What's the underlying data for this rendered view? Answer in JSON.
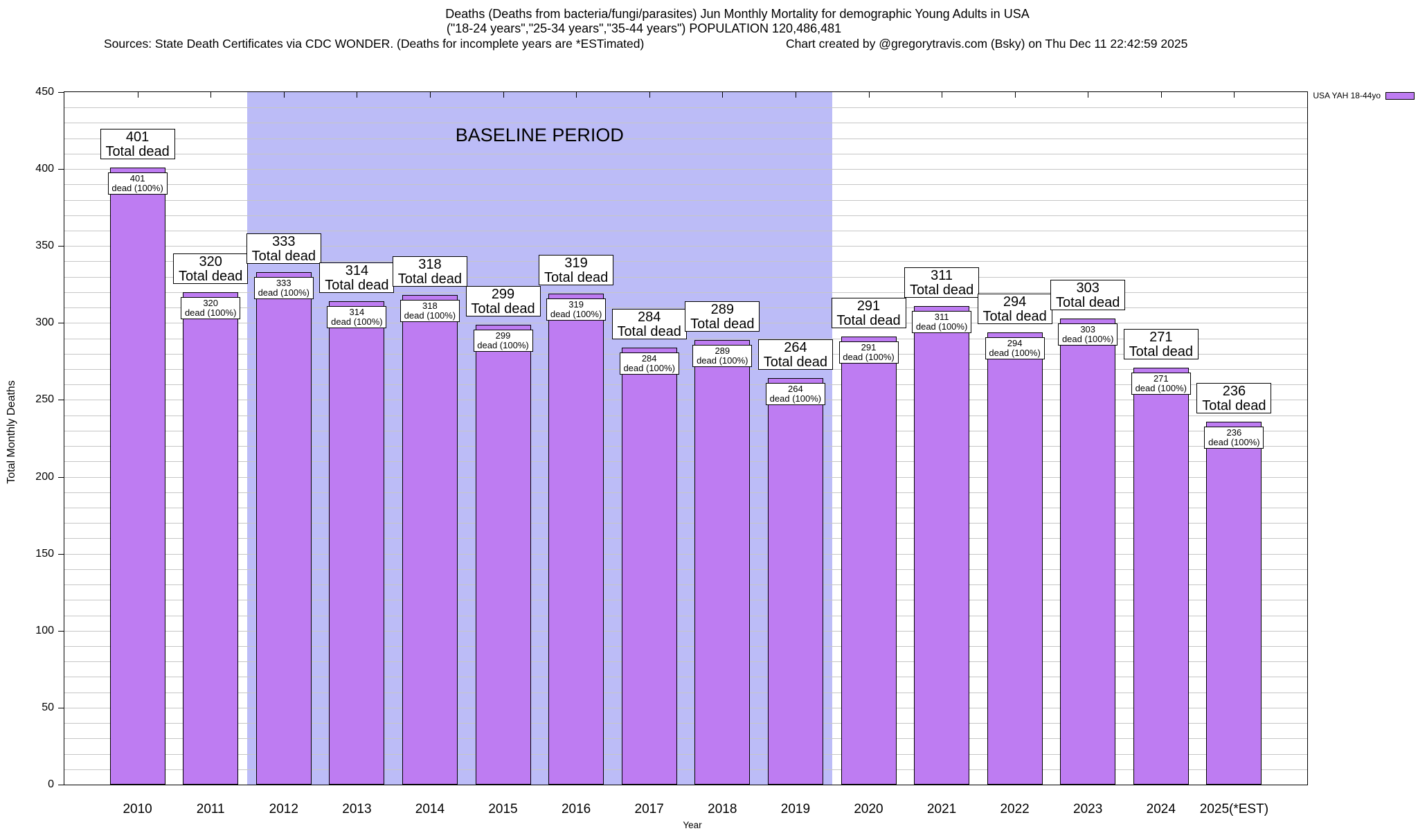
{
  "title": {
    "line1": "Deaths (Deaths from bacteria/fungi/parasites) Jun Monthly Mortality for demographic Young Adults in USA",
    "line2": "(\"18-24 years\",\"25-34 years\",\"35-44 years\") POPULATION 120,486,481",
    "sources": "Sources: State Death Certificates via CDC WONDER. (Deaths for incomplete years are *ESTimated)",
    "credit": "Chart created by @gregorytravis.com (Bsky) on Thu Dec 11 22:42:59 2025"
  },
  "legend": {
    "label": "USA YAH 18-44yo",
    "swatch_color": "#be7cf2"
  },
  "axes": {
    "y_label": "Total Monthly Deaths",
    "x_label": "Year"
  },
  "annotations": {
    "baseline_label": "BASELINE PERIOD"
  },
  "chart_data": {
    "type": "bar",
    "title": "Deaths (Deaths from bacteria/fungi/parasites) Jun Monthly Mortality for demographic Young Adults in USA",
    "subtitle": "(\"18-24 years\",\"25-34 years\",\"35-44 years\") POPULATION 120,486,481",
    "categories": [
      "2010",
      "2011",
      "2012",
      "2013",
      "2014",
      "2015",
      "2016",
      "2017",
      "2018",
      "2019",
      "2020",
      "2021",
      "2022",
      "2023",
      "2024",
      "2025(*EST)"
    ],
    "series": [
      {
        "name": "USA YAH 18-44yo",
        "values": [
          401,
          320,
          333,
          314,
          318,
          299,
          319,
          284,
          289,
          264,
          291,
          311,
          294,
          303,
          271,
          236
        ]
      }
    ],
    "bar_label_line2_top": "Total dead",
    "bar_label_line2_inner": "dead (100%)",
    "xlabel": "Year",
    "ylabel": "Total Monthly Deaths",
    "ylim": [
      0,
      450
    ],
    "y_tick_step": 50,
    "y_grid_step": 10,
    "grid": true,
    "legend_position": "top-right",
    "bar_color": "#be7cf2",
    "baseline_band": {
      "label": "BASELINE PERIOD",
      "from_category": "2012",
      "to_category": "2019",
      "color": "#bcbcf7"
    }
  }
}
